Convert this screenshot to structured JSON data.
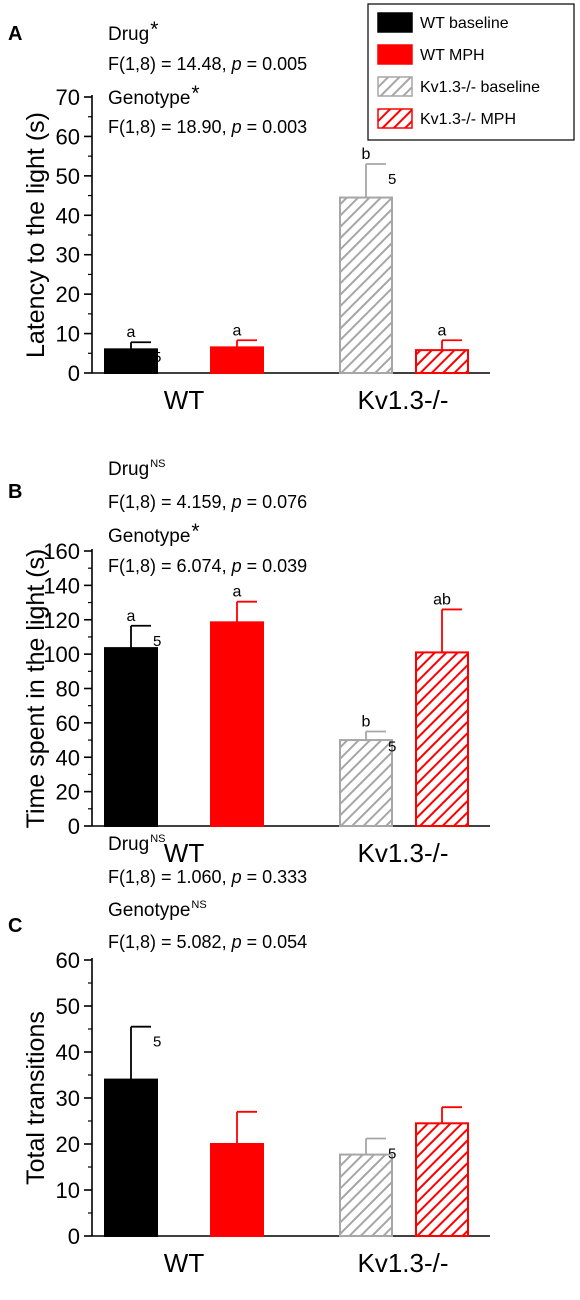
{
  "legend": [
    {
      "label": "WT baseline",
      "color": "#000000",
      "pattern": "solid"
    },
    {
      "label": "WT MPH",
      "color": "#ff0000",
      "pattern": "solid"
    },
    {
      "label": "Kv1.3-/- baseline",
      "color": "#a6a6a6",
      "pattern": "hatch"
    },
    {
      "label": "Kv1.3-/- MPH",
      "color": "#ff0000",
      "pattern": "hatch"
    }
  ],
  "chart_data": [
    {
      "panel": "A",
      "type": "bar",
      "ylabel": "Latency to the light (s)",
      "ylim": [
        0,
        70
      ],
      "yticks": [
        0,
        10,
        20,
        30,
        40,
        50,
        60,
        70
      ],
      "categories": [
        "WT",
        "Kv1.3-/-"
      ],
      "stats": [
        {
          "term": "Drug",
          "mark": "*",
          "text": "F(1,8) = 14.48, p = 0.005"
        },
        {
          "term": "Genotype",
          "mark": "*",
          "text": "F(1,8) = 18.90, p = 0.003"
        }
      ],
      "bars": [
        {
          "series": "WT baseline",
          "category": "WT",
          "value": 6,
          "error": 1.8,
          "letter": "a",
          "n": "5"
        },
        {
          "series": "WT MPH",
          "category": "WT",
          "value": 6.5,
          "error": 1.8,
          "letter": "a",
          "n": ""
        },
        {
          "series": "Kv1.3-/- baseline",
          "category": "Kv1.3-/-",
          "value": 44.5,
          "error": 8.5,
          "letter": "b",
          "n": "5"
        },
        {
          "series": "Kv1.3-/- MPH",
          "category": "Kv1.3-/-",
          "value": 5.8,
          "error": 2.5,
          "letter": "a",
          "n": ""
        }
      ]
    },
    {
      "panel": "B",
      "type": "bar",
      "ylabel": "Time spent in the light (s)",
      "ylim": [
        0,
        160
      ],
      "yticks": [
        0,
        20,
        40,
        60,
        80,
        100,
        120,
        140,
        160
      ],
      "categories": [
        "WT",
        "Kv1.3-/-"
      ],
      "stats": [
        {
          "term": "Drug",
          "mark": "NS",
          "text": "F(1,8) = 4.159, p = 0.076"
        },
        {
          "term": "Genotype",
          "mark": "*",
          "text": "F(1,8) = 6.074, p = 0.039"
        }
      ],
      "bars": [
        {
          "series": "WT baseline",
          "category": "WT",
          "value": 103.5,
          "error": 13,
          "letter": "a",
          "n": "5"
        },
        {
          "series": "WT MPH",
          "category": "WT",
          "value": 118.5,
          "error": 12,
          "letter": "a",
          "n": ""
        },
        {
          "series": "Kv1.3-/- baseline",
          "category": "Kv1.3-/-",
          "value": 50,
          "error": 5,
          "letter": "b",
          "n": "5"
        },
        {
          "series": "Kv1.3-/- MPH",
          "category": "Kv1.3-/-",
          "value": 101,
          "error": 25,
          "letter": "ab",
          "n": ""
        }
      ]
    },
    {
      "panel": "C",
      "type": "bar",
      "ylabel": "Total transitions",
      "ylim": [
        0,
        60
      ],
      "yticks": [
        0,
        10,
        20,
        30,
        40,
        50,
        60
      ],
      "categories": [
        "WT",
        "Kv1.3-/-"
      ],
      "stats": [
        {
          "term": "Drug",
          "mark": "NS",
          "text": "F(1,8) = 1.060, p = 0.333"
        },
        {
          "term": "Genotype",
          "mark": "NS",
          "text": "F(1,8) = 5.082, p = 0.054"
        }
      ],
      "bars": [
        {
          "series": "WT baseline",
          "category": "WT",
          "value": 34,
          "error": 11.5,
          "letter": "",
          "n": "5"
        },
        {
          "series": "WT MPH",
          "category": "WT",
          "value": 20,
          "error": 7,
          "letter": "",
          "n": ""
        },
        {
          "series": "Kv1.3-/- baseline",
          "category": "Kv1.3-/-",
          "value": 17.7,
          "error": 3.5,
          "letter": "",
          "n": "5"
        },
        {
          "series": "Kv1.3-/- MPH",
          "category": "Kv1.3-/-",
          "value": 24.5,
          "error": 3.5,
          "letter": "",
          "n": ""
        }
      ]
    }
  ]
}
